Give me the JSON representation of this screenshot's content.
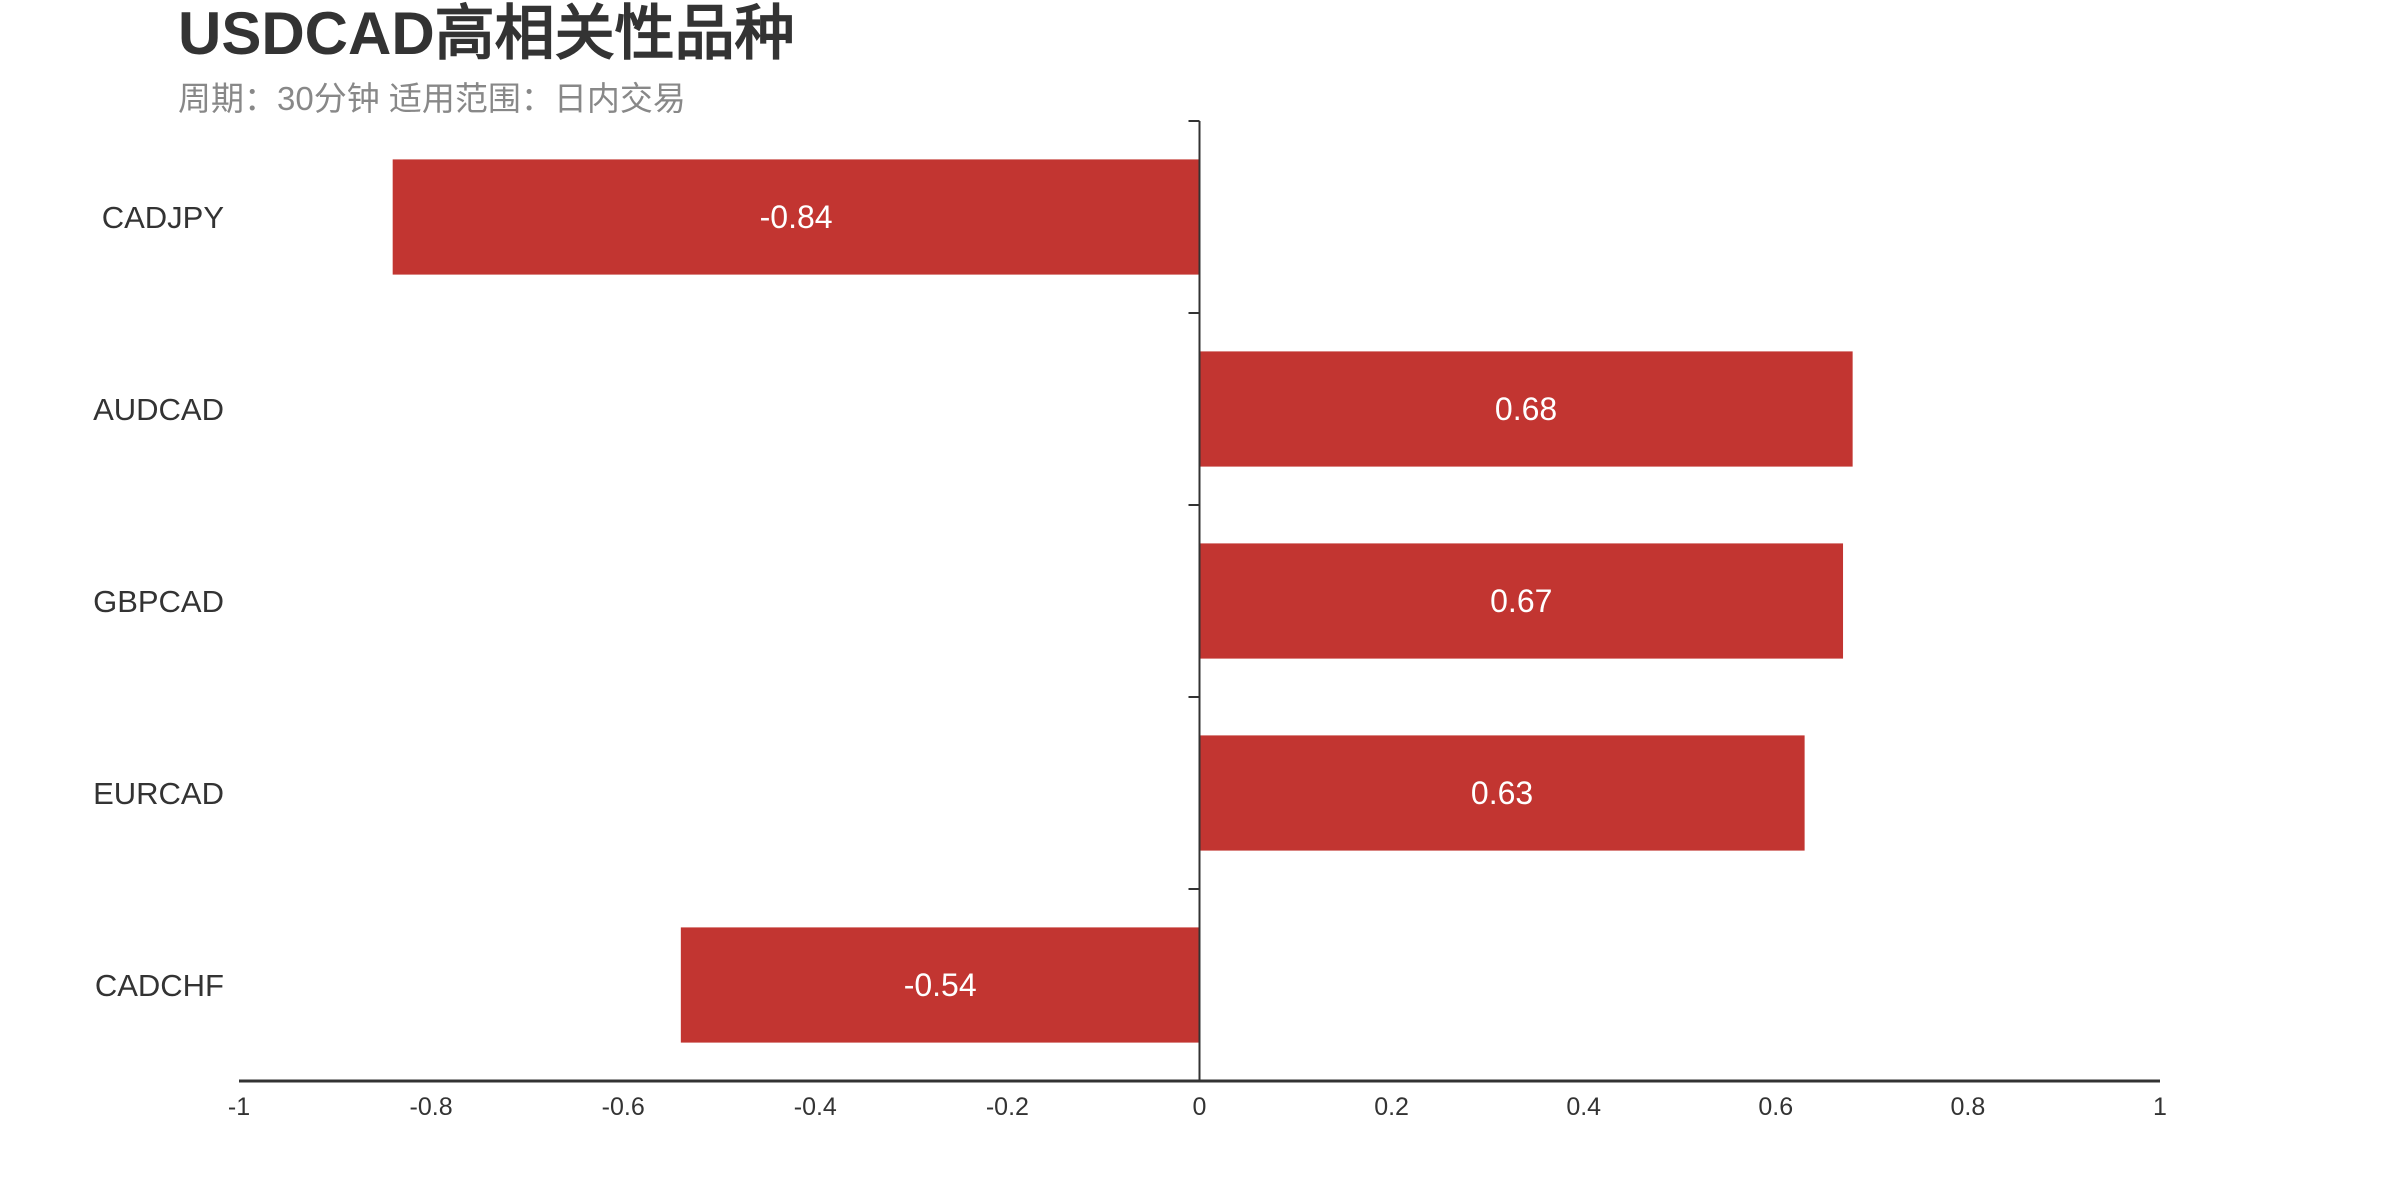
{
  "chart_data": {
    "type": "bar",
    "orientation": "horizontal",
    "title": "USDCAD高相关性品种",
    "subtitle": "周期：30分钟 适用范围：日内交易",
    "categories": [
      "CADJPY",
      "AUDCAD",
      "GBPCAD",
      "EURCAD",
      "CADCHF"
    ],
    "values": [
      -0.84,
      0.68,
      0.67,
      0.63,
      -0.54
    ],
    "data_labels": [
      "-0.84",
      "0.68",
      "0.67",
      "0.63",
      "-0.54"
    ],
    "xlim": [
      -1,
      1
    ],
    "xticks": [
      -1,
      -0.8,
      -0.6,
      -0.4,
      -0.2,
      0,
      0.2,
      0.4,
      0.6,
      0.8,
      1
    ],
    "xtick_labels": [
      "-1",
      "-0.8",
      "-0.6",
      "-0.4",
      "-0.2",
      "0",
      "0.2",
      "0.4",
      "0.6",
      "0.8",
      "1"
    ],
    "xlabel": "",
    "ylabel": "",
    "grid": false,
    "legend": "none",
    "colors": {
      "bar": "#c23531",
      "text": "#333333",
      "subtitle": "#888888"
    }
  }
}
